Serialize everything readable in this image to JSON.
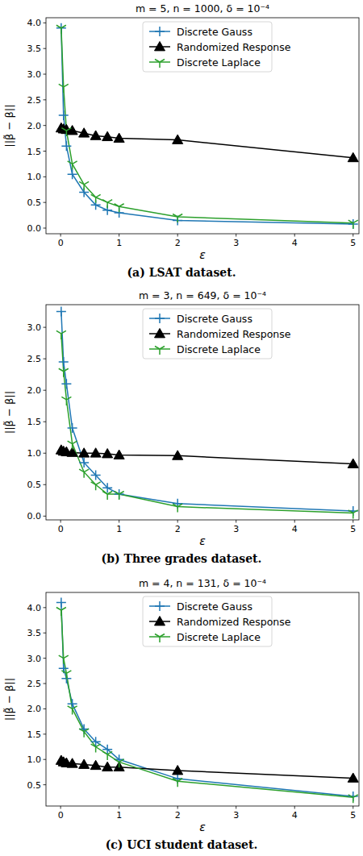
{
  "chart_data": [
    {
      "type": "line",
      "title": "m = 5, n = 1000, δ = 10⁻⁴",
      "caption": "(a) LSAT dataset.",
      "x_label": "ε",
      "y_label": "||β̃ − β||",
      "x": [
        0.01,
        0.05,
        0.1,
        0.2,
        0.4,
        0.6,
        0.8,
        1.0,
        2.0,
        5.0
      ],
      "series": [
        {
          "name": "Discrete Gauss",
          "color": "#1f77b4",
          "marker": "plus",
          "values": [
            3.9,
            2.2,
            1.6,
            1.05,
            0.7,
            0.45,
            0.35,
            0.3,
            0.15,
            0.08
          ]
        },
        {
          "name": "Randomized Response",
          "color": "#000000",
          "marker": "triangle",
          "values": [
            1.95,
            1.93,
            1.92,
            1.9,
            1.85,
            1.8,
            1.78,
            1.75,
            1.72,
            1.37
          ]
        },
        {
          "name": "Discrete Laplace",
          "color": "#2ca02c",
          "marker": "tri_down",
          "values": [
            3.9,
            2.75,
            1.9,
            1.25,
            0.85,
            0.6,
            0.5,
            0.42,
            0.22,
            0.1
          ]
        }
      ],
      "xlim": [
        -0.25,
        5.1
      ],
      "xticks": [
        0,
        1,
        2,
        3,
        4,
        5
      ],
      "ylim": [
        -0.11,
        4.1
      ],
      "yticks": [
        {
          "value": 0,
          "label": "0.0"
        },
        0.5,
        {
          "value": 1,
          "label": "1.0"
        },
        1.5,
        {
          "value": 2,
          "label": "2.0"
        },
        2.5,
        {
          "value": 3,
          "label": "3.0"
        },
        3.5,
        {
          "value": 4,
          "label": "4.0"
        }
      ],
      "legend": "upper center",
      "grid": false
    },
    {
      "type": "line",
      "title": "m = 3, n = 649, δ = 10⁻⁴",
      "caption": "(b) Three grades dataset.",
      "x_label": "ε",
      "y_label": "||β̃ − β||",
      "x": [
        0.01,
        0.05,
        0.1,
        0.2,
        0.4,
        0.6,
        0.8,
        1.0,
        2.0,
        5.0
      ],
      "series": [
        {
          "name": "Discrete Gauss",
          "color": "#1f77b4",
          "marker": "plus",
          "values": [
            3.25,
            2.45,
            2.1,
            1.4,
            0.85,
            0.65,
            0.45,
            0.35,
            0.2,
            0.08
          ]
        },
        {
          "name": "Randomized Response",
          "color": "#000000",
          "marker": "triangle",
          "values": [
            1.05,
            1.03,
            1.02,
            1.01,
            1.0,
            1.0,
            0.99,
            0.97,
            0.96,
            0.83
          ]
        },
        {
          "name": "Discrete Laplace",
          "color": "#2ca02c",
          "marker": "tri_down",
          "values": [
            2.9,
            2.3,
            1.85,
            1.15,
            0.7,
            0.5,
            0.35,
            0.35,
            0.15,
            0.05
          ]
        }
      ],
      "xlim": [
        -0.25,
        5.1
      ],
      "xticks": [
        0,
        1,
        2,
        3,
        4,
        5
      ],
      "ylim": [
        -0.06,
        3.36
      ],
      "yticks": [
        {
          "value": 0,
          "label": "0.0"
        },
        0.5,
        {
          "value": 1,
          "label": "1.0"
        },
        1.5,
        {
          "value": 2,
          "label": "2.0"
        },
        2.5,
        {
          "value": 3,
          "label": "3.0"
        }
      ],
      "legend": "upper center",
      "grid": false
    },
    {
      "type": "line",
      "title": "m = 4, n = 131, δ = 10⁻⁴",
      "caption": "(c) UCI student dataset.",
      "x_label": "ε",
      "y_label": "||β̃ − β||",
      "x": [
        0.01,
        0.05,
        0.1,
        0.2,
        0.4,
        0.6,
        0.8,
        1.0,
        2.0,
        5.0
      ],
      "series": [
        {
          "name": "Discrete Gauss",
          "color": "#1f77b4",
          "marker": "plus",
          "values": [
            4.1,
            2.8,
            2.6,
            2.1,
            1.6,
            1.35,
            1.2,
            1.0,
            0.62,
            0.27
          ]
        },
        {
          "name": "Randomized Response",
          "color": "#000000",
          "marker": "triangle",
          "values": [
            0.98,
            0.95,
            0.93,
            0.92,
            0.9,
            0.88,
            0.85,
            0.85,
            0.78,
            0.63
          ]
        },
        {
          "name": "Discrete Laplace",
          "color": "#2ca02c",
          "marker": "tri_down",
          "values": [
            3.95,
            3.0,
            2.7,
            2.0,
            1.55,
            1.25,
            1.1,
            0.95,
            0.57,
            0.25
          ]
        }
      ],
      "xlim": [
        -0.25,
        5.1
      ],
      "xticks": [
        0,
        1,
        2,
        3,
        4,
        5
      ],
      "ylim": [
        0.08,
        4.3
      ],
      "yticks": [
        0.5,
        {
          "value": 1,
          "label": "1.0"
        },
        1.5,
        {
          "value": 2,
          "label": "2.0"
        },
        2.5,
        {
          "value": 3,
          "label": "3.0"
        },
        3.5,
        {
          "value": 4,
          "label": "4.0"
        }
      ],
      "legend": "upper center",
      "grid": false
    }
  ]
}
